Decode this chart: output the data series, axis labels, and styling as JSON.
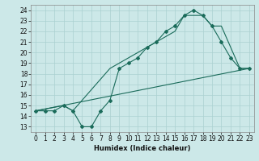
{
  "xlabel": "Humidex (Indice chaleur)",
  "background_color": "#cce8e8",
  "grid_color": "#aad0d0",
  "line_color": "#1a6b5a",
  "xlim": [
    -0.5,
    23.5
  ],
  "ylim": [
    12.5,
    24.5
  ],
  "xticks": [
    0,
    1,
    2,
    3,
    4,
    5,
    6,
    7,
    8,
    9,
    10,
    11,
    12,
    13,
    14,
    15,
    16,
    17,
    18,
    19,
    20,
    21,
    22,
    23
  ],
  "yticks": [
    13,
    14,
    15,
    16,
    17,
    18,
    19,
    20,
    21,
    22,
    23,
    24
  ],
  "line1_x": [
    0,
    1,
    2,
    3,
    4,
    5,
    6,
    7,
    8,
    9,
    10,
    11,
    12,
    13,
    14,
    15,
    16,
    17,
    18,
    19,
    20,
    21,
    22,
    23
  ],
  "line1_y": [
    14.5,
    14.5,
    14.5,
    15.0,
    14.5,
    13.0,
    13.0,
    14.5,
    15.5,
    18.5,
    19.0,
    19.5,
    20.5,
    21.0,
    22.0,
    22.5,
    23.5,
    24.0,
    23.5,
    22.5,
    21.0,
    19.5,
    18.5,
    18.5
  ],
  "line2_x": [
    0,
    3,
    4,
    8,
    9,
    15,
    16,
    18,
    19,
    20,
    22,
    23
  ],
  "line2_y": [
    14.5,
    15.0,
    14.5,
    18.5,
    19.0,
    22.0,
    23.5,
    23.5,
    22.5,
    22.5,
    18.5,
    18.5
  ],
  "line3_x": [
    0,
    23
  ],
  "line3_y": [
    14.5,
    18.5
  ]
}
